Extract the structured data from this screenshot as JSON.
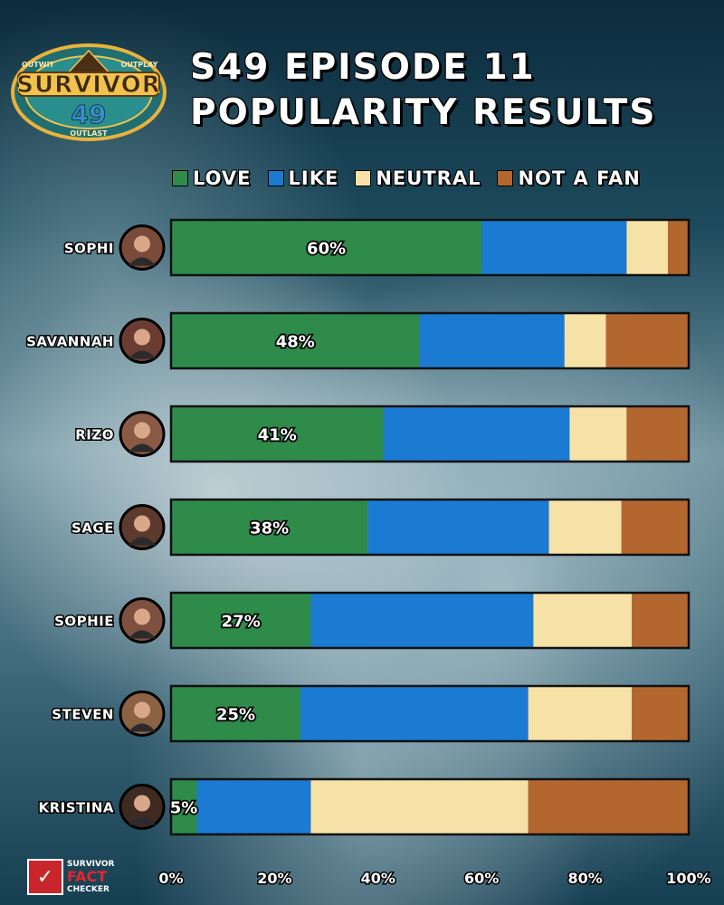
{
  "logo": {
    "wordmark": "SURVIVOR",
    "season_number": "49",
    "motto_left": "OUTWIT",
    "motto_right": "OUTPLAY",
    "motto_bottom": "OUTLAST"
  },
  "title": {
    "line1": "S49 EPISODE 11",
    "line2": "POPULARITY RESULTS"
  },
  "legend": [
    {
      "label": "LOVE",
      "color": "#2e8b4a"
    },
    {
      "label": "LIKE",
      "color": "#1b7ad1"
    },
    {
      "label": "NEUTRAL",
      "color": "#f6e1a6"
    },
    {
      "label": "NOT A FAN",
      "color": "#b3672f"
    }
  ],
  "chart_data": {
    "type": "bar",
    "orientation": "horizontal",
    "stacked": true,
    "categories": [
      "SOPHI",
      "SAVANNAH",
      "RIZO",
      "SAGE",
      "SOPHIE",
      "STEVEN",
      "KRISTINA"
    ],
    "series": [
      {
        "name": "LOVE",
        "color": "#2e8b4a",
        "values": [
          60,
          48,
          41,
          38,
          27,
          25,
          5
        ]
      },
      {
        "name": "LIKE",
        "color": "#1b7ad1",
        "values": [
          28,
          28,
          36,
          35,
          43,
          44,
          22
        ]
      },
      {
        "name": "NEUTRAL",
        "color": "#f6e1a6",
        "values": [
          8,
          8,
          11,
          14,
          19,
          20,
          42
        ]
      },
      {
        "name": "NOT A FAN",
        "color": "#b3672f",
        "values": [
          4,
          16,
          12,
          13,
          11,
          11,
          31
        ]
      }
    ],
    "value_labels": [
      "60%",
      "48%",
      "41%",
      "38%",
      "27%",
      "25%",
      "5%"
    ],
    "x_ticks": [
      "0%",
      "20%",
      "40%",
      "60%",
      "80%",
      "100%"
    ],
    "xlim": [
      0,
      100
    ],
    "legend_position": "top",
    "grid": false
  },
  "brand": {
    "line1": "SURVIVOR",
    "line2": "FACT",
    "line3": "CHECKER"
  }
}
